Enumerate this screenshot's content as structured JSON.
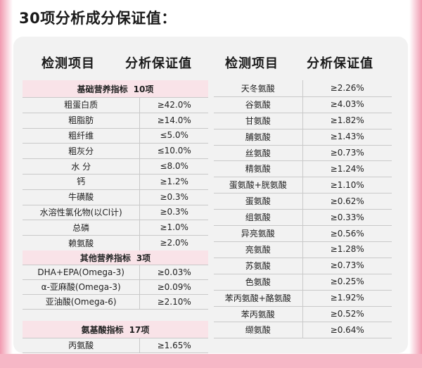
{
  "title": "30项分析成分保证值：",
  "headers": {
    "left_name": "检测项目",
    "left_value": "分析保证值",
    "right_name": "检测项目",
    "right_value": "分析保证值"
  },
  "left": {
    "basic": {
      "label": "基础营养指标",
      "count": "10项",
      "rows": [
        {
          "name": "粗蛋白质",
          "value": "≥42.0%"
        },
        {
          "name": "粗脂肪",
          "value": "≥14.0%"
        },
        {
          "name": "粗纤维",
          "value": "≤5.0%"
        },
        {
          "name": "粗灰分",
          "value": "≤10.0%"
        },
        {
          "name": "水  分",
          "value": "≤8.0%"
        },
        {
          "name": "钙",
          "value": "≥1.2%"
        },
        {
          "name": "牛磺酸",
          "value": "≥0.3%"
        },
        {
          "name": "水溶性氯化物(以Cl计)",
          "value": "≥0.3%"
        },
        {
          "name": "总磷",
          "value": "≥1.0%"
        },
        {
          "name": "赖氨酸",
          "value": "≥2.0%"
        }
      ]
    },
    "other": {
      "label": "其他营养指标",
      "count": "3项",
      "rows": [
        {
          "name": "DHA+EPA(Omega-3)",
          "value": "≥0.03%"
        },
        {
          "name": "α-亚麻酸(Omega-3)",
          "value": "≥0.09%"
        },
        {
          "name": "亚油酸(Omega-6)",
          "value": "≥2.10%"
        }
      ]
    },
    "amino": {
      "label": "氨基酸指标",
      "count": "17项",
      "rows": [
        {
          "name": "丙氨酸",
          "value": "≥1.65%"
        }
      ]
    }
  },
  "right": {
    "rows": [
      {
        "name": "天冬氨酸",
        "value": "≥2.26%"
      },
      {
        "name": "谷氨酸",
        "value": "≥4.03%"
      },
      {
        "name": "甘氨酸",
        "value": "≥1.82%"
      },
      {
        "name": "脯氨酸",
        "value": "≥1.43%"
      },
      {
        "name": "丝氨酸",
        "value": "≥0.73%"
      },
      {
        "name": "精氨酸",
        "value": "≥1.24%"
      },
      {
        "name": "蛋氨酸+胱氨酸",
        "value": "≥1.10%"
      },
      {
        "name": "蛋氨酸",
        "value": "≥0.62%"
      },
      {
        "name": "组氨酸",
        "value": "≥0.33%"
      },
      {
        "name": "异亮氨酸",
        "value": "≥0.56%"
      },
      {
        "name": "亮氨酸",
        "value": "≥1.28%"
      },
      {
        "name": "苏氨酸",
        "value": "≥0.73%"
      },
      {
        "name": "色氨酸",
        "value": "≥0.25%"
      },
      {
        "name": "苯丙氨酸+酪氨酸",
        "value": "≥1.92%"
      },
      {
        "name": "苯丙氨酸",
        "value": "≥0.52%"
      },
      {
        "name": "缬氨酸",
        "value": "≥0.64%"
      }
    ]
  }
}
